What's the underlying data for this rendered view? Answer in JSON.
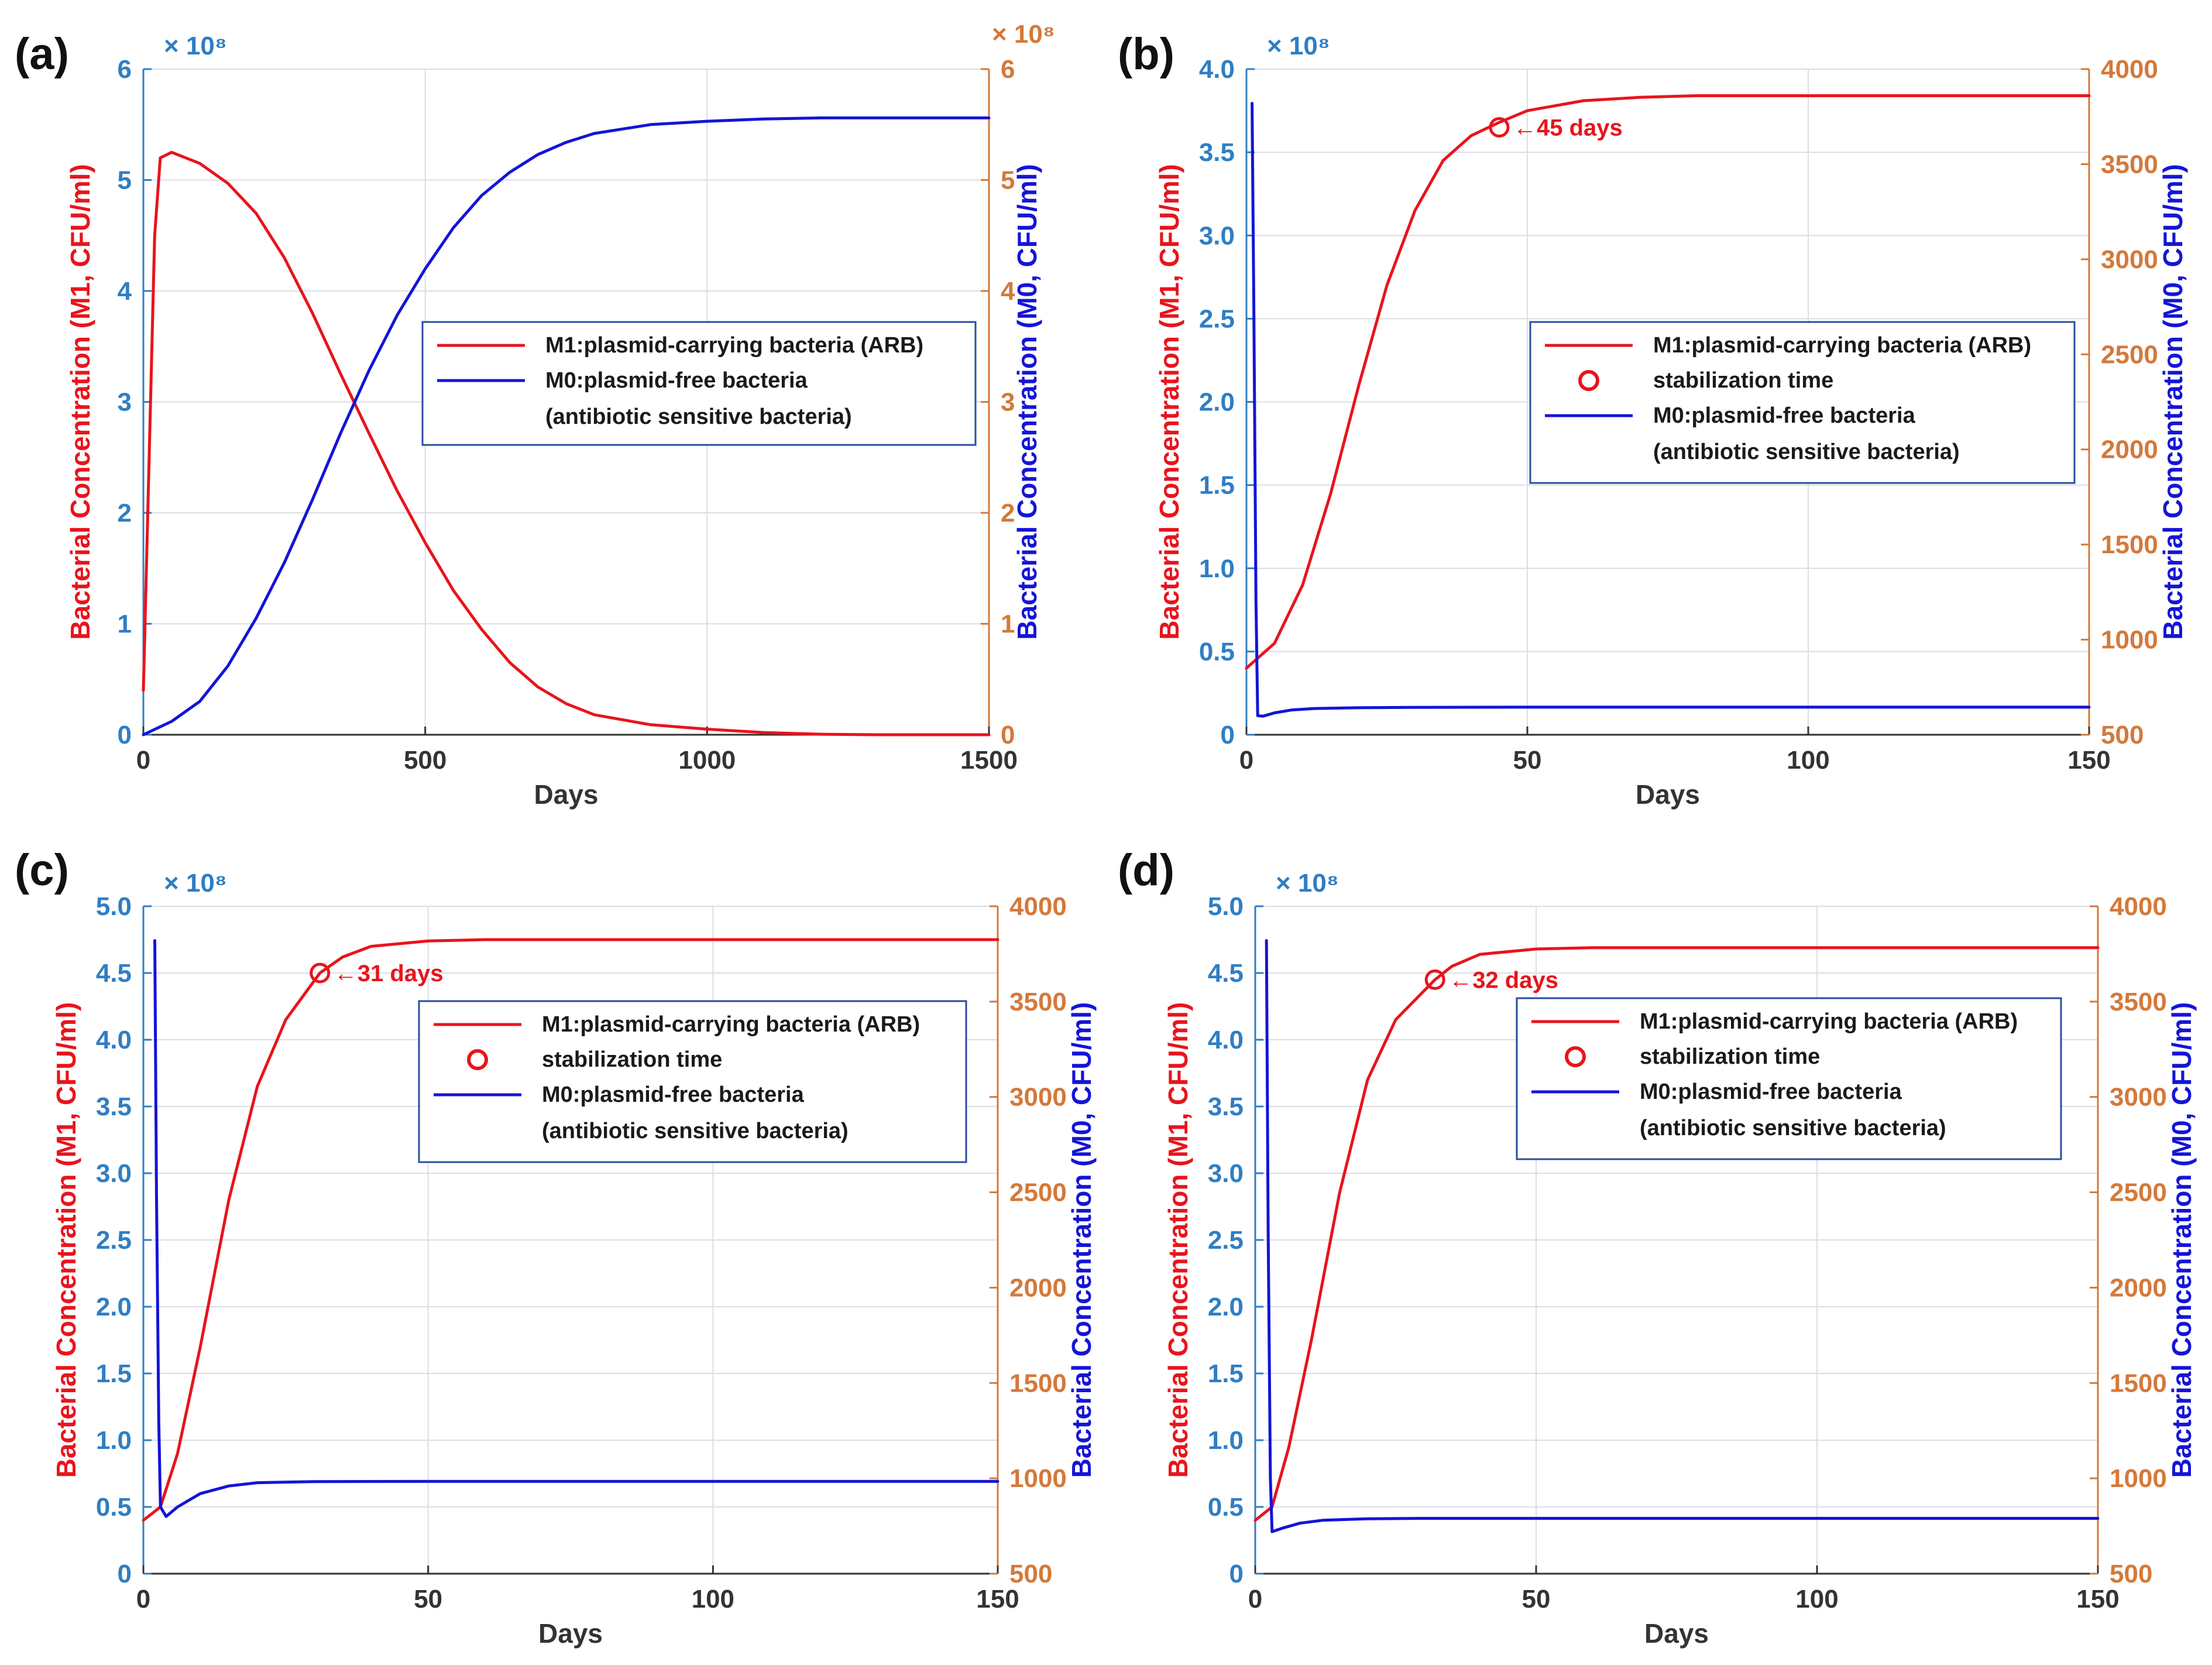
{
  "colors": {
    "m1_line": "#e8141c",
    "m0_line": "#1414d8",
    "left_axis": "#2f7ec4",
    "right_axis": "#d4793a",
    "grid": "#d9dee5",
    "legend_border": "#2a4da0",
    "text": "#333333"
  },
  "chart_data": [
    {
      "panel_label": "(a)",
      "type": "line",
      "xlabel": "Days",
      "xlim": [
        0,
        1500
      ],
      "xticks": [
        0,
        500,
        1000,
        1500
      ],
      "y_left": {
        "label": "Bacterial Concentration (M1, CFU/ml)",
        "multiplier": "× 10⁸",
        "lim": [
          0,
          6
        ],
        "ticks": [
          "0",
          "1",
          "2",
          "3",
          "4",
          "5",
          "6"
        ]
      },
      "y_right": {
        "label": "Bacterial Concentration (M0, CFU/ml)",
        "multiplier": "× 10⁸",
        "lim": [
          0,
          6
        ],
        "ticks": [
          "0",
          "1",
          "2",
          "3",
          "4",
          "5",
          "6"
        ]
      },
      "grid": true,
      "legend": {
        "items": [
          {
            "type": "line",
            "color_key": "m1_line",
            "lines": [
              "M1:plasmid-carrying bacteria (ARB)"
            ]
          },
          {
            "type": "line",
            "color_key": "m0_line",
            "lines": [
              "M0:plasmid-free bacteria",
              "(antibiotic sensitive bacteria)"
            ]
          }
        ]
      },
      "series": [
        {
          "name": "M1:plasmid-carrying bacteria (ARB)",
          "axis": "left",
          "color_key": "m1_line",
          "points": [
            [
              0,
              0.4
            ],
            [
              20,
              4.5
            ],
            [
              30,
              5.2
            ],
            [
              50,
              5.25
            ],
            [
              100,
              5.15
            ],
            [
              150,
              4.97
            ],
            [
              200,
              4.7
            ],
            [
              250,
              4.3
            ],
            [
              300,
              3.8
            ],
            [
              350,
              3.25
            ],
            [
              400,
              2.72
            ],
            [
              450,
              2.2
            ],
            [
              500,
              1.73
            ],
            [
              550,
              1.3
            ],
            [
              600,
              0.95
            ],
            [
              650,
              0.65
            ],
            [
              700,
              0.43
            ],
            [
              750,
              0.28
            ],
            [
              800,
              0.18
            ],
            [
              900,
              0.09
            ],
            [
              1000,
              0.05
            ],
            [
              1100,
              0.02
            ],
            [
              1200,
              0.005
            ],
            [
              1300,
              0.0
            ],
            [
              1500,
              0.0
            ]
          ]
        },
        {
          "name": "M0:plasmid-free bacteria (antibiotic sensitive bacteria)",
          "axis": "right",
          "color_key": "m0_line",
          "points": [
            [
              0,
              0.0
            ],
            [
              50,
              0.12
            ],
            [
              100,
              0.3
            ],
            [
              150,
              0.62
            ],
            [
              200,
              1.05
            ],
            [
              250,
              1.55
            ],
            [
              300,
              2.12
            ],
            [
              350,
              2.72
            ],
            [
              400,
              3.28
            ],
            [
              450,
              3.78
            ],
            [
              500,
              4.2
            ],
            [
              550,
              4.57
            ],
            [
              600,
              4.86
            ],
            [
              650,
              5.07
            ],
            [
              700,
              5.23
            ],
            [
              750,
              5.34
            ],
            [
              800,
              5.42
            ],
            [
              900,
              5.5
            ],
            [
              1000,
              5.53
            ],
            [
              1100,
              5.55
            ],
            [
              1200,
              5.56
            ],
            [
              1500,
              5.56
            ]
          ]
        }
      ]
    },
    {
      "panel_label": "(b)",
      "type": "line",
      "xlabel": "Days",
      "xlim": [
        0,
        150
      ],
      "xticks": [
        0,
        50,
        100,
        150
      ],
      "y_left": {
        "label": "Bacterial Concentration (M1, CFU/ml)",
        "multiplier": "× 10⁸",
        "lim": [
          0,
          4.0
        ],
        "ticks": [
          "0",
          "0.5",
          "1.0",
          "1.5",
          "2.0",
          "2.5",
          "3.0",
          "3.5",
          "4.0"
        ]
      },
      "y_right": {
        "label": "Bacterial Concentration (M0, CFU/ml)",
        "lim": [
          500,
          4000
        ],
        "ticks": [
          "500",
          "1000",
          "1500",
          "2000",
          "2500",
          "3000",
          "3500",
          "4000"
        ]
      },
      "grid": true,
      "annotation": {
        "x": 45,
        "y": 3.65,
        "label": "←45 days"
      },
      "legend": {
        "items": [
          {
            "type": "line",
            "color_key": "m1_line",
            "lines": [
              "M1:plasmid-carrying bacteria (ARB)"
            ]
          },
          {
            "type": "marker",
            "color_key": "m1_line",
            "lines": [
              "stabilization time"
            ]
          },
          {
            "type": "line",
            "color_key": "m0_line",
            "lines": [
              "M0:plasmid-free bacteria",
              "(antibiotic sensitive bacteria)"
            ]
          }
        ]
      },
      "series": [
        {
          "name": "M1:plasmid-carrying bacteria (ARB)",
          "axis": "left",
          "color_key": "m1_line",
          "points": [
            [
              0,
              0.4
            ],
            [
              5,
              0.55
            ],
            [
              10,
              0.9
            ],
            [
              15,
              1.45
            ],
            [
              20,
              2.1
            ],
            [
              25,
              2.7
            ],
            [
              30,
              3.15
            ],
            [
              35,
              3.45
            ],
            [
              40,
              3.6
            ],
            [
              45,
              3.68
            ],
            [
              50,
              3.75
            ],
            [
              60,
              3.81
            ],
            [
              70,
              3.83
            ],
            [
              80,
              3.84
            ],
            [
              100,
              3.84
            ],
            [
              150,
              3.84
            ]
          ]
        },
        {
          "name": "M0:plasmid-free bacteria (antibiotic sensitive bacteria)",
          "axis": "right",
          "color_key": "m0_line",
          "points": [
            [
              1,
              3820
            ],
            [
              1.3,
              2800
            ],
            [
              1.7,
              1200
            ],
            [
              2,
              600
            ],
            [
              3,
              598
            ],
            [
              5,
              615
            ],
            [
              8,
              630
            ],
            [
              12,
              638
            ],
            [
              20,
              642
            ],
            [
              30,
              644
            ],
            [
              50,
              645
            ],
            [
              100,
              645
            ],
            [
              150,
              645
            ]
          ]
        }
      ]
    },
    {
      "panel_label": "(c)",
      "type": "line",
      "xlabel": "Days",
      "xlim": [
        0,
        150
      ],
      "xticks": [
        0,
        50,
        100,
        150
      ],
      "y_left": {
        "label": "Bacterial Concentration (M1, CFU/ml)",
        "multiplier": "× 10⁸",
        "lim": [
          0,
          5.0
        ],
        "ticks": [
          "0",
          "0.5",
          "1.0",
          "1.5",
          "2.0",
          "2.5",
          "3.0",
          "3.5",
          "4.0",
          "4.5",
          "5.0"
        ]
      },
      "y_right": {
        "label": "Bacterial Concentration (M0, CFU/ml)",
        "lim": [
          500,
          4000
        ],
        "ticks": [
          "500",
          "1000",
          "1500",
          "2000",
          "2500",
          "3000",
          "3500",
          "4000"
        ]
      },
      "grid": true,
      "annotation": {
        "x": 31,
        "y": 4.5,
        "label": "←31 days"
      },
      "legend": {
        "items": [
          {
            "type": "line",
            "color_key": "m1_line",
            "lines": [
              "M1:plasmid-carrying bacteria (ARB)"
            ]
          },
          {
            "type": "marker",
            "color_key": "m1_line",
            "lines": [
              "stabilization time"
            ]
          },
          {
            "type": "line",
            "color_key": "m0_line",
            "lines": [
              "M0:plasmid-free bacteria",
              "(antibiotic sensitive bacteria)"
            ]
          }
        ]
      },
      "series": [
        {
          "name": "M1:plasmid-carrying bacteria (ARB)",
          "axis": "left",
          "color_key": "m1_line",
          "points": [
            [
              0,
              0.4
            ],
            [
              3,
              0.5
            ],
            [
              6,
              0.9
            ],
            [
              10,
              1.7
            ],
            [
              15,
              2.8
            ],
            [
              20,
              3.65
            ],
            [
              25,
              4.15
            ],
            [
              31,
              4.5
            ],
            [
              35,
              4.62
            ],
            [
              40,
              4.7
            ],
            [
              50,
              4.74
            ],
            [
              60,
              4.75
            ],
            [
              150,
              4.75
            ]
          ]
        },
        {
          "name": "M0:plasmid-free bacteria (antibiotic sensitive bacteria)",
          "axis": "right",
          "color_key": "m0_line",
          "points": [
            [
              2,
              3820
            ],
            [
              2.3,
              2500
            ],
            [
              2.7,
              1300
            ],
            [
              3,
              850
            ],
            [
              4,
              800
            ],
            [
              6,
              850
            ],
            [
              10,
              920
            ],
            [
              15,
              960
            ],
            [
              20,
              977
            ],
            [
              30,
              983
            ],
            [
              50,
              984
            ],
            [
              100,
              984
            ],
            [
              150,
              984
            ]
          ]
        }
      ]
    },
    {
      "panel_label": "(d)",
      "type": "line",
      "xlabel": "Days",
      "xlim": [
        0,
        150
      ],
      "xticks": [
        0,
        50,
        100,
        150
      ],
      "y_left": {
        "label": "Bacterial Concentration (M1, CFU/ml)",
        "multiplier": "× 10⁸",
        "lim": [
          0,
          5.0
        ],
        "ticks": [
          "0",
          "0.5",
          "1.0",
          "1.5",
          "2.0",
          "2.5",
          "3.0",
          "3.5",
          "4.0",
          "4.5",
          "5.0"
        ]
      },
      "y_right": {
        "label": "Bacterial Concentration (M0, CFU/ml)",
        "lim": [
          500,
          4000
        ],
        "ticks": [
          "500",
          "1000",
          "1500",
          "2000",
          "2500",
          "3000",
          "3500",
          "4000"
        ]
      },
      "grid": true,
      "annotation": {
        "x": 32,
        "y": 4.45,
        "label": "←32 days"
      },
      "legend": {
        "items": [
          {
            "type": "line",
            "color_key": "m1_line",
            "lines": [
              "M1:plasmid-carrying bacteria (ARB)"
            ]
          },
          {
            "type": "marker",
            "color_key": "m1_line",
            "lines": [
              "stabilization time"
            ]
          },
          {
            "type": "line",
            "color_key": "m0_line",
            "lines": [
              "M0:plasmid-free bacteria",
              "(antibiotic sensitive bacteria)"
            ]
          }
        ]
      },
      "series": [
        {
          "name": "M1:plasmid-carrying bacteria (ARB)",
          "axis": "left",
          "color_key": "m1_line",
          "points": [
            [
              0,
              0.4
            ],
            [
              3,
              0.5
            ],
            [
              6,
              0.95
            ],
            [
              10,
              1.75
            ],
            [
              15,
              2.85
            ],
            [
              20,
              3.7
            ],
            [
              25,
              4.15
            ],
            [
              32,
              4.45
            ],
            [
              35,
              4.55
            ],
            [
              40,
              4.64
            ],
            [
              50,
              4.68
            ],
            [
              60,
              4.69
            ],
            [
              150,
              4.69
            ]
          ]
        },
        {
          "name": "M0:plasmid-free bacteria (antibiotic sensitive bacteria)",
          "axis": "right",
          "color_key": "m0_line",
          "points": [
            [
              2,
              3820
            ],
            [
              2.3,
              2300
            ],
            [
              2.7,
              1000
            ],
            [
              3,
              720
            ],
            [
              5,
              740
            ],
            [
              8,
              765
            ],
            [
              12,
              780
            ],
            [
              20,
              788
            ],
            [
              30,
              790
            ],
            [
              50,
              790
            ],
            [
              100,
              790
            ],
            [
              150,
              790
            ]
          ]
        }
      ]
    }
  ]
}
